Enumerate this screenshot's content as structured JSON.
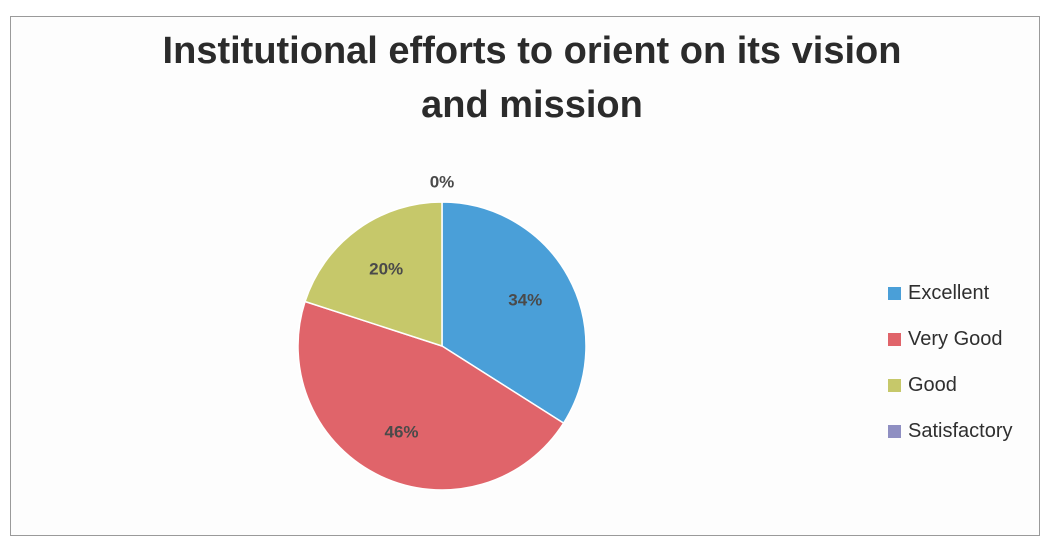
{
  "chart_data": {
    "type": "pie",
    "title_lines": [
      "Institutional efforts to orient on its vision",
      "and mission"
    ],
    "categories": [
      "Excellent",
      "Very Good",
      "Good",
      "Satisfactory"
    ],
    "values": [
      34,
      46,
      20,
      0
    ],
    "labels": [
      "34%",
      "46%",
      "20%",
      "0%"
    ],
    "colors": [
      "#4a9fd8",
      "#e0646a",
      "#c6c86a",
      "#8f8fc2"
    ],
    "legend_position": "right"
  }
}
